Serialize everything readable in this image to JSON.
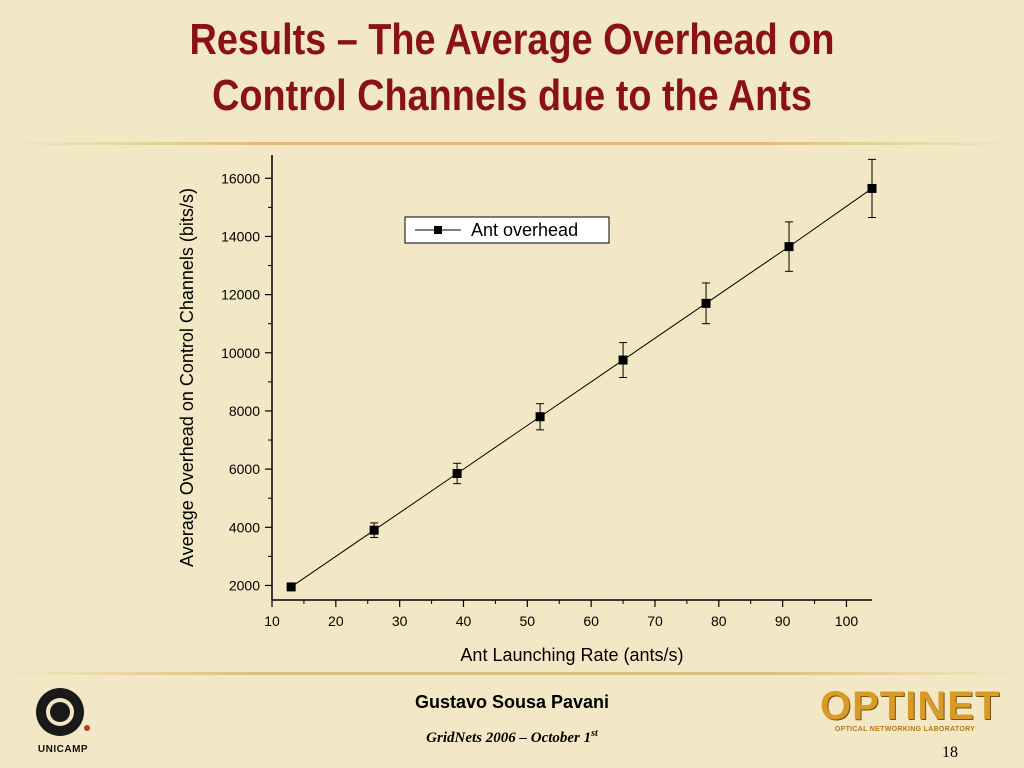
{
  "slide": {
    "title_line1": "Results – The Average Overhead on",
    "title_line2": "Control Channels due to the Ants",
    "author": "Gustavo Sousa Pavani",
    "conference": "GridNets 2006  – October 1",
    "conference_sup": "st",
    "page_number": "18",
    "left_logo_text": "UNICAMP",
    "right_logo_text": "OPTINET",
    "right_logo_subtext": "OPTICAL NETWORKING LABORATORY",
    "colors": {
      "background": "#f3e8c6",
      "title": "#8a1212",
      "rule": "#dcc07a",
      "logo_gold": "#d89b28"
    }
  },
  "chart_data": {
    "type": "scatter",
    "xlabel": "Ant Launching Rate (ants/s)",
    "ylabel": "Average Overhead on Control Channels (bits/s)",
    "xlim": [
      10,
      104
    ],
    "ylim": [
      1500,
      16800
    ],
    "xticks": [
      10,
      20,
      30,
      40,
      50,
      60,
      70,
      80,
      90,
      100
    ],
    "yticks": [
      2000,
      4000,
      6000,
      8000,
      10000,
      12000,
      14000,
      16000
    ],
    "legend_position": "top-center",
    "grid": false,
    "series": [
      {
        "name": "Ant overhead",
        "marker": "square",
        "line": true,
        "x": [
          13,
          26,
          39,
          52,
          65,
          78,
          91,
          104
        ],
        "y": [
          1950,
          3900,
          5850,
          7800,
          9750,
          11700,
          13650,
          15650
        ],
        "error": [
          0,
          250,
          350,
          450,
          600,
          700,
          850,
          1000
        ]
      }
    ]
  }
}
